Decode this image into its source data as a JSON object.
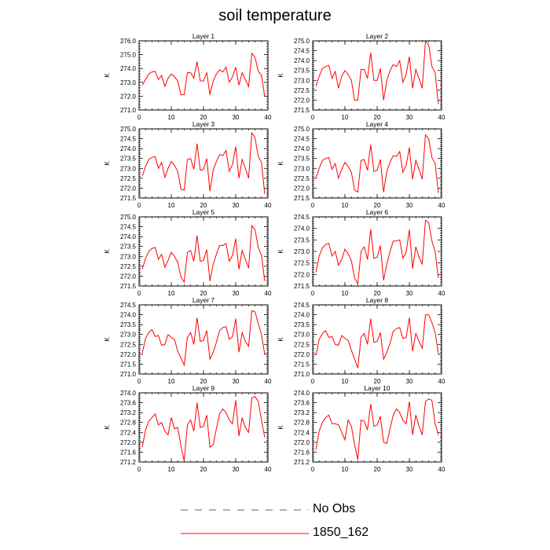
{
  "figure": {
    "title": "soil temperature",
    "legend": [
      {
        "label": "No Obs",
        "color": "#5060a0",
        "dash": true
      },
      {
        "label": "1850_162",
        "color": "#ff0000",
        "dash": false
      }
    ]
  },
  "chart_data": [
    {
      "type": "line",
      "title": "Layer 1",
      "ylabel": "K",
      "xlim": [
        0,
        40
      ],
      "ylim": [
        271.0,
        276.0
      ],
      "xticks": [
        0,
        10,
        20,
        30,
        40
      ],
      "yticks": [
        271.0,
        272.0,
        273.0,
        274.0,
        275.0,
        276.0
      ],
      "x": [
        1,
        2,
        3,
        4,
        5,
        6,
        7,
        8,
        9,
        10,
        11,
        12,
        13,
        14,
        15,
        16,
        17,
        18,
        19,
        20,
        21,
        22,
        23,
        24,
        25,
        26,
        27,
        28,
        29,
        30,
        31,
        32,
        33,
        34,
        35,
        36,
        37,
        38,
        39
      ],
      "series": [
        {
          "name": "1850_162",
          "values": [
            272.8,
            273.2,
            273.6,
            273.75,
            273.8,
            273.2,
            273.5,
            272.7,
            273.3,
            273.6,
            273.4,
            273.1,
            272.1,
            272.1,
            273.7,
            273.7,
            273.3,
            274.5,
            273.1,
            273.1,
            273.7,
            272.1,
            273.1,
            273.6,
            273.9,
            273.75,
            274.1,
            273.0,
            273.4,
            274.1,
            272.8,
            273.7,
            273.2,
            272.7,
            275.1,
            274.8,
            273.8,
            273.5,
            272.0
          ]
        }
      ]
    },
    {
      "type": "line",
      "title": "Layer 2",
      "ylabel": "K",
      "xlim": [
        0,
        40
      ],
      "ylim": [
        271.5,
        275.0
      ],
      "xticks": [
        0,
        10,
        20,
        30,
        40
      ],
      "yticks": [
        271.5,
        272.0,
        272.5,
        273.0,
        273.5,
        274.0,
        274.5,
        275.0
      ],
      "x": [
        1,
        2,
        3,
        4,
        5,
        6,
        7,
        8,
        9,
        10,
        11,
        12,
        13,
        14,
        15,
        16,
        17,
        18,
        19,
        20,
        21,
        22,
        23,
        24,
        25,
        26,
        27,
        28,
        29,
        30,
        31,
        32,
        33,
        34,
        35,
        36,
        37,
        38,
        39
      ],
      "series": [
        {
          "name": "1850_162",
          "values": [
            272.7,
            273.2,
            273.6,
            273.7,
            273.75,
            273.1,
            273.45,
            272.6,
            273.2,
            273.5,
            273.3,
            273.0,
            272.0,
            272.0,
            273.55,
            273.55,
            273.1,
            274.4,
            273.0,
            273.0,
            273.6,
            272.0,
            273.0,
            273.5,
            273.8,
            273.7,
            274.0,
            272.9,
            273.3,
            274.2,
            272.6,
            273.55,
            273.1,
            272.6,
            275.0,
            274.8,
            273.7,
            273.4,
            271.8
          ]
        }
      ]
    },
    {
      "type": "line",
      "title": "Layer 3",
      "ylabel": "K",
      "xlim": [
        0,
        40
      ],
      "ylim": [
        271.5,
        275.0
      ],
      "xticks": [
        0,
        10,
        20,
        30,
        40
      ],
      "yticks": [
        271.5,
        272.0,
        272.5,
        273.0,
        273.5,
        274.0,
        274.5,
        275.0
      ],
      "x": [
        1,
        2,
        3,
        4,
        5,
        6,
        7,
        8,
        9,
        10,
        11,
        12,
        13,
        14,
        15,
        16,
        17,
        18,
        19,
        20,
        21,
        22,
        23,
        24,
        25,
        26,
        27,
        28,
        29,
        30,
        31,
        32,
        33,
        34,
        35,
        36,
        37,
        38,
        39
      ],
      "series": [
        {
          "name": "1850_162",
          "values": [
            272.6,
            273.1,
            273.45,
            273.55,
            273.6,
            273.0,
            273.3,
            272.55,
            273.0,
            273.35,
            273.15,
            272.85,
            271.95,
            271.9,
            273.45,
            273.5,
            272.95,
            274.25,
            272.9,
            272.95,
            273.5,
            271.85,
            272.9,
            273.35,
            273.7,
            273.65,
            273.9,
            272.85,
            273.2,
            274.1,
            272.5,
            273.45,
            273.0,
            272.5,
            274.8,
            274.55,
            273.6,
            273.3,
            271.7
          ]
        }
      ]
    },
    {
      "type": "line",
      "title": "Layer 4",
      "ylabel": "K",
      "xlim": [
        0,
        40
      ],
      "ylim": [
        271.5,
        275.0
      ],
      "xticks": [
        0,
        10,
        20,
        30,
        40
      ],
      "yticks": [
        271.5,
        272.0,
        272.5,
        273.0,
        273.5,
        274.0,
        274.5,
        275.0
      ],
      "x": [
        1,
        2,
        3,
        4,
        5,
        6,
        7,
        8,
        9,
        10,
        11,
        12,
        13,
        14,
        15,
        16,
        17,
        18,
        19,
        20,
        21,
        22,
        23,
        24,
        25,
        26,
        27,
        28,
        29,
        30,
        31,
        32,
        33,
        34,
        35,
        36,
        37,
        38,
        39
      ],
      "series": [
        {
          "name": "1850_162",
          "values": [
            272.5,
            273.0,
            273.4,
            273.5,
            273.55,
            272.95,
            273.25,
            272.5,
            272.95,
            273.3,
            273.1,
            272.8,
            271.9,
            271.8,
            273.4,
            273.45,
            272.9,
            274.2,
            272.85,
            272.9,
            273.45,
            271.8,
            272.85,
            273.3,
            273.65,
            273.6,
            273.85,
            272.8,
            273.15,
            274.05,
            272.45,
            273.4,
            272.95,
            272.45,
            274.7,
            274.5,
            273.55,
            273.25,
            271.75
          ]
        }
      ]
    },
    {
      "type": "line",
      "title": "Layer 5",
      "ylabel": "K",
      "xlim": [
        0,
        40
      ],
      "ylim": [
        271.5,
        275.0
      ],
      "xticks": [
        0,
        10,
        20,
        30,
        40
      ],
      "yticks": [
        271.5,
        272.0,
        272.5,
        273.0,
        273.5,
        274.0,
        274.5,
        275.0
      ],
      "x": [
        1,
        2,
        3,
        4,
        5,
        6,
        7,
        8,
        9,
        10,
        11,
        12,
        13,
        14,
        15,
        16,
        17,
        18,
        19,
        20,
        21,
        22,
        23,
        24,
        25,
        26,
        27,
        28,
        29,
        30,
        31,
        32,
        33,
        34,
        35,
        36,
        37,
        38,
        39
      ],
      "series": [
        {
          "name": "1850_162",
          "values": [
            272.35,
            272.9,
            273.25,
            273.4,
            273.45,
            272.85,
            273.1,
            272.45,
            272.8,
            273.2,
            273.0,
            272.7,
            271.95,
            271.7,
            273.2,
            273.3,
            272.75,
            274.05,
            272.75,
            272.8,
            273.35,
            271.75,
            272.6,
            273.1,
            273.55,
            273.55,
            273.65,
            272.75,
            273.05,
            273.9,
            272.35,
            273.3,
            272.85,
            272.4,
            274.55,
            274.35,
            273.45,
            273.05,
            271.75
          ]
        }
      ]
    },
    {
      "type": "line",
      "title": "Layer 6",
      "ylabel": "K",
      "xlim": [
        0,
        40
      ],
      "ylim": [
        271.5,
        274.5
      ],
      "xticks": [
        0,
        10,
        20,
        30,
        40
      ],
      "yticks": [
        271.5,
        272.0,
        272.5,
        273.0,
        273.5,
        274.0,
        274.5
      ],
      "x": [
        1,
        2,
        3,
        4,
        5,
        6,
        7,
        8,
        9,
        10,
        11,
        12,
        13,
        14,
        15,
        16,
        17,
        18,
        19,
        20,
        21,
        22,
        23,
        24,
        25,
        26,
        27,
        28,
        29,
        30,
        31,
        32,
        33,
        34,
        35,
        36,
        37,
        38,
        39
      ],
      "series": [
        {
          "name": "1850_162",
          "values": [
            272.1,
            272.8,
            273.15,
            273.3,
            273.35,
            272.8,
            273.0,
            272.4,
            272.65,
            273.1,
            272.9,
            272.6,
            271.85,
            271.6,
            273.0,
            273.2,
            272.65,
            273.95,
            272.7,
            272.75,
            273.25,
            271.75,
            272.45,
            273.0,
            273.45,
            273.45,
            273.5,
            272.7,
            272.95,
            273.95,
            272.25,
            273.2,
            272.75,
            272.45,
            274.35,
            274.25,
            273.45,
            273.0,
            271.85
          ]
        }
      ]
    },
    {
      "type": "line",
      "title": "Layer 7",
      "ylabel": "K",
      "xlim": [
        0,
        40
      ],
      "ylim": [
        271.0,
        274.5
      ],
      "xticks": [
        0,
        10,
        20,
        30,
        40
      ],
      "yticks": [
        271.0,
        271.5,
        272.0,
        272.5,
        273.0,
        273.5,
        274.0,
        274.5
      ],
      "x": [
        1,
        2,
        3,
        4,
        5,
        6,
        7,
        8,
        9,
        10,
        11,
        12,
        13,
        14,
        15,
        16,
        17,
        18,
        19,
        20,
        21,
        22,
        23,
        24,
        25,
        26,
        27,
        28,
        29,
        30,
        31,
        32,
        33,
        34,
        35,
        36,
        37,
        38,
        39
      ],
      "series": [
        {
          "name": "1850_162",
          "values": [
            272.05,
            272.8,
            273.1,
            273.25,
            272.9,
            272.95,
            272.45,
            272.5,
            273.0,
            272.85,
            272.75,
            272.15,
            271.8,
            271.45,
            272.85,
            273.1,
            272.5,
            273.85,
            272.65,
            272.7,
            273.2,
            271.75,
            272.1,
            272.6,
            273.2,
            273.35,
            273.4,
            272.75,
            272.9,
            273.8,
            272.1,
            273.1,
            272.65,
            272.4,
            274.2,
            274.15,
            273.55,
            273.0,
            272.0
          ]
        }
      ]
    },
    {
      "type": "line",
      "title": "Layer 8",
      "ylabel": "K",
      "xlim": [
        0,
        40
      ],
      "ylim": [
        271.0,
        274.5
      ],
      "xticks": [
        0,
        10,
        20,
        30,
        40
      ],
      "yticks": [
        271.0,
        271.5,
        272.0,
        272.5,
        273.0,
        273.5,
        274.0,
        274.5
      ],
      "x": [
        1,
        2,
        3,
        4,
        5,
        6,
        7,
        8,
        9,
        10,
        11,
        12,
        13,
        14,
        15,
        16,
        17,
        18,
        19,
        20,
        21,
        22,
        23,
        24,
        25,
        26,
        27,
        28,
        29,
        30,
        31,
        32,
        33,
        34,
        35,
        36,
        37,
        38,
        39
      ],
      "series": [
        {
          "name": "1850_162",
          "values": [
            271.95,
            272.75,
            273.05,
            273.2,
            272.85,
            272.9,
            272.5,
            272.45,
            272.95,
            272.8,
            272.7,
            272.2,
            271.75,
            271.3,
            272.85,
            273.05,
            272.5,
            273.8,
            272.6,
            272.65,
            273.1,
            271.75,
            272.1,
            272.55,
            273.15,
            273.3,
            273.35,
            272.8,
            272.85,
            273.85,
            272.15,
            273.05,
            272.65,
            272.3,
            274.0,
            274.0,
            273.6,
            273.1,
            272.05
          ]
        }
      ]
    },
    {
      "type": "line",
      "title": "Layer 9",
      "ylabel": "K",
      "xlim": [
        0,
        40
      ],
      "ylim": [
        271.2,
        274.0
      ],
      "xticks": [
        0,
        10,
        20,
        30,
        40
      ],
      "yticks": [
        271.2,
        271.6,
        272.0,
        272.4,
        272.8,
        273.2,
        273.6,
        274.0
      ],
      "x": [
        1,
        2,
        3,
        4,
        5,
        6,
        7,
        8,
        9,
        10,
        11,
        12,
        13,
        14,
        15,
        16,
        17,
        18,
        19,
        20,
        21,
        22,
        23,
        24,
        25,
        26,
        27,
        28,
        29,
        30,
        31,
        32,
        33,
        34,
        35,
        36,
        37,
        38,
        39
      ],
      "series": [
        {
          "name": "1850_162",
          "values": [
            271.8,
            272.5,
            272.85,
            273.0,
            273.15,
            272.7,
            272.8,
            272.45,
            272.3,
            273.0,
            272.55,
            272.6,
            271.85,
            271.25,
            272.7,
            272.9,
            272.45,
            273.6,
            272.6,
            272.65,
            273.1,
            271.8,
            271.9,
            272.55,
            273.15,
            273.35,
            273.2,
            272.9,
            272.75,
            273.7,
            272.25,
            273.0,
            272.6,
            272.4,
            273.8,
            273.85,
            273.65,
            272.9,
            272.2
          ]
        }
      ]
    },
    {
      "type": "line",
      "title": "Layer 10",
      "ylabel": "K",
      "xlim": [
        0,
        40
      ],
      "ylim": [
        271.2,
        274.0
      ],
      "xticks": [
        0,
        10,
        20,
        30,
        40
      ],
      "yticks": [
        271.2,
        271.6,
        272.0,
        272.4,
        272.8,
        273.2,
        273.6,
        274.0
      ],
      "x": [
        1,
        2,
        3,
        4,
        5,
        6,
        7,
        8,
        9,
        10,
        11,
        12,
        13,
        14,
        15,
        16,
        17,
        18,
        19,
        20,
        21,
        22,
        23,
        24,
        25,
        26,
        27,
        28,
        29,
        30,
        31,
        32,
        33,
        34,
        35,
        36,
        37,
        38,
        39
      ],
      "series": [
        {
          "name": "1850_162",
          "values": [
            271.7,
            272.45,
            272.8,
            273.0,
            273.1,
            272.75,
            272.75,
            272.7,
            272.4,
            272.1,
            272.9,
            272.65,
            271.9,
            271.3,
            272.9,
            272.85,
            272.5,
            273.55,
            272.65,
            272.7,
            273.05,
            272.0,
            271.95,
            272.55,
            273.1,
            273.35,
            273.2,
            272.9,
            272.75,
            273.65,
            272.3,
            273.1,
            272.65,
            272.3,
            273.65,
            273.75,
            273.7,
            272.75,
            272.3
          ]
        }
      ]
    }
  ]
}
